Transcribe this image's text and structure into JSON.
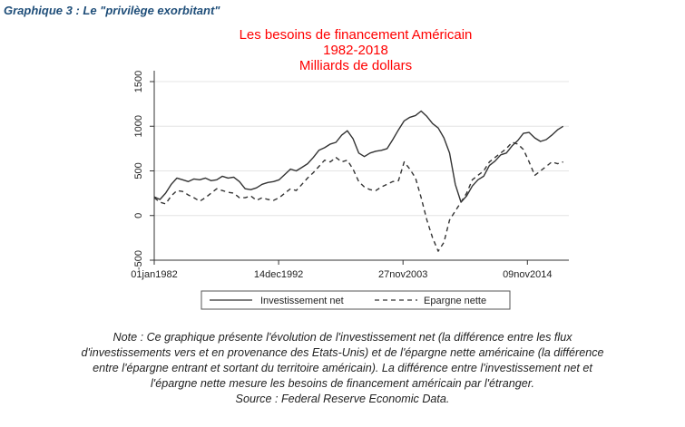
{
  "heading": "Graphique 3 : Le \"privilège exorbitant\"",
  "chart_data": {
    "type": "line",
    "title_lines": [
      "Les besoins de financement Américain",
      "1982-2018",
      "Milliards de dollars"
    ],
    "title_color": "#ff0000",
    "xlabel": "",
    "ylabel": "",
    "x_ticks": [
      "01jan1982",
      "14dec1992",
      "27nov2003",
      "09nov2014"
    ],
    "y_ticks": [
      "-500",
      "0",
      "500",
      "1000",
      "1500"
    ],
    "ylim": [
      -500,
      1500
    ],
    "xlim": [
      1982.0,
      2018.5
    ],
    "grid": "horizontal",
    "legend_position": "bottom",
    "series": [
      {
        "name": "Investissement net",
        "style": "solid",
        "color": "#333333",
        "x": [
          1982.0,
          1982.5,
          1983.0,
          1983.5,
          1984.0,
          1984.5,
          1985.0,
          1985.5,
          1986.0,
          1986.5,
          1987.0,
          1987.5,
          1988.0,
          1988.5,
          1989.0,
          1989.5,
          1990.0,
          1990.5,
          1991.0,
          1991.5,
          1992.0,
          1992.5,
          1993.0,
          1993.5,
          1994.0,
          1994.5,
          1995.0,
          1995.5,
          1996.0,
          1996.5,
          1997.0,
          1997.5,
          1998.0,
          1998.5,
          1999.0,
          1999.5,
          2000.0,
          2000.5,
          2001.0,
          2001.5,
          2002.0,
          2002.5,
          2003.0,
          2003.5,
          2004.0,
          2004.5,
          2005.0,
          2005.5,
          2006.0,
          2006.5,
          2007.0,
          2007.5,
          2008.0,
          2008.5,
          2009.0,
          2009.5,
          2010.0,
          2010.5,
          2011.0,
          2011.5,
          2012.0,
          2012.5,
          2013.0,
          2013.5,
          2014.0,
          2014.5,
          2015.0,
          2015.5,
          2016.0,
          2016.5,
          2017.0,
          2017.5,
          2018.0
        ],
        "values": [
          210,
          180,
          250,
          350,
          420,
          400,
          380,
          410,
          400,
          420,
          390,
          400,
          440,
          420,
          430,
          380,
          300,
          290,
          310,
          350,
          370,
          380,
          400,
          460,
          520,
          500,
          540,
          580,
          650,
          730,
          760,
          800,
          820,
          900,
          950,
          860,
          700,
          660,
          700,
          720,
          730,
          750,
          850,
          960,
          1060,
          1100,
          1120,
          1170,
          1110,
          1030,
          980,
          870,
          700,
          350,
          150,
          220,
          330,
          400,
          440,
          560,
          610,
          680,
          700,
          780,
          840,
          920,
          930,
          870,
          830,
          850,
          900,
          960,
          1000
        ]
      },
      {
        "name": "Epargne nette",
        "style": "dashed",
        "color": "#333333",
        "x": [
          1982.0,
          1982.5,
          1983.0,
          1983.5,
          1984.0,
          1984.5,
          1985.0,
          1985.5,
          1986.0,
          1986.5,
          1987.0,
          1987.5,
          1988.0,
          1988.5,
          1989.0,
          1989.5,
          1990.0,
          1990.5,
          1991.0,
          1991.5,
          1992.0,
          1992.5,
          1993.0,
          1993.5,
          1994.0,
          1994.5,
          1995.0,
          1995.5,
          1996.0,
          1996.5,
          1997.0,
          1997.5,
          1998.0,
          1998.5,
          1999.0,
          1999.5,
          2000.0,
          2000.5,
          2001.0,
          2001.5,
          2002.0,
          2002.5,
          2003.0,
          2003.5,
          2004.0,
          2004.5,
          2005.0,
          2005.5,
          2006.0,
          2006.5,
          2007.0,
          2007.5,
          2008.0,
          2008.5,
          2009.0,
          2009.5,
          2010.0,
          2010.5,
          2011.0,
          2011.5,
          2012.0,
          2012.5,
          2013.0,
          2013.5,
          2014.0,
          2014.5,
          2015.0,
          2015.5,
          2016.0,
          2016.5,
          2017.0,
          2017.5,
          2018.0
        ],
        "values": [
          200,
          150,
          130,
          220,
          280,
          270,
          230,
          200,
          160,
          200,
          250,
          300,
          280,
          260,
          250,
          200,
          200,
          220,
          170,
          200,
          180,
          170,
          200,
          250,
          300,
          280,
          350,
          420,
          480,
          550,
          620,
          600,
          650,
          600,
          620,
          520,
          380,
          320,
          290,
          280,
          320,
          350,
          380,
          390,
          600,
          520,
          420,
          200,
          -50,
          -250,
          -400,
          -300,
          -50,
          50,
          150,
          250,
          400,
          450,
          500,
          600,
          650,
          700,
          750,
          820,
          800,
          740,
          600,
          450,
          500,
          550,
          600,
          580,
          600
        ]
      }
    ]
  },
  "note_lines": [
    "Note : Ce graphique présente l'évolution de l'investissement net (la différence entre les flux",
    "d'investissements vers et en provenance des Etats-Unis) et de l'épargne nette américaine (la différence",
    "entre l'épargne entrant et sortant du territoire américain). La différence entre l'investissement net et",
    "l'épargne nette mesure les besoins de financement américain par l'étranger.",
    "Source : Federal Reserve Economic Data."
  ]
}
